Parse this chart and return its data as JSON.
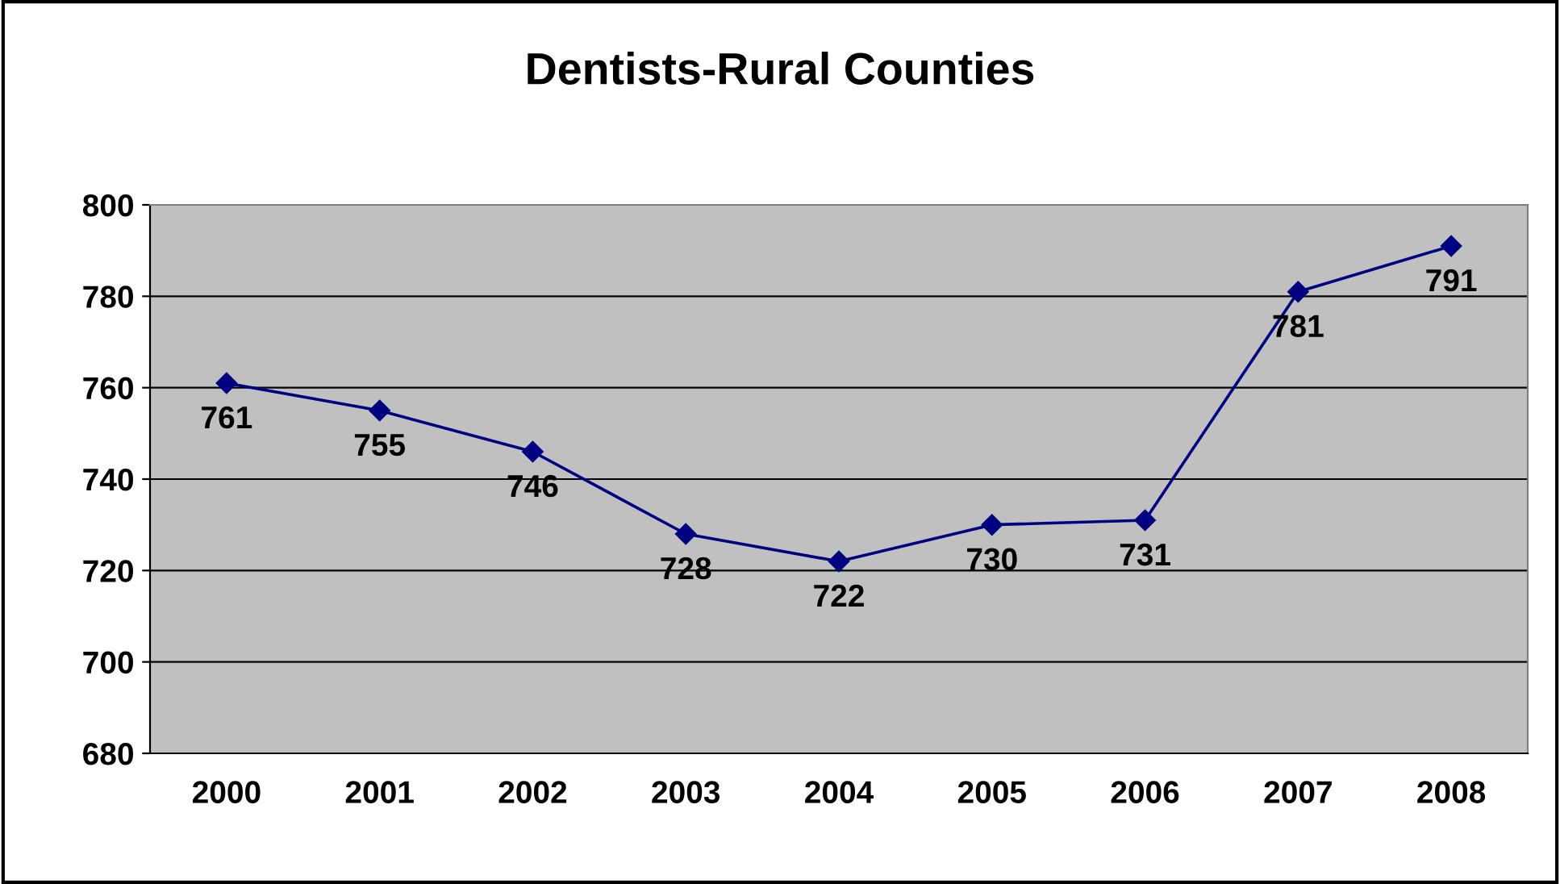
{
  "chart_data": {
    "type": "line",
    "title": "Dentists-Rural Counties",
    "categories": [
      "2000",
      "2001",
      "2002",
      "2003",
      "2004",
      "2005",
      "2006",
      "2007",
      "2008"
    ],
    "series": [
      {
        "color": "#000080",
        "values": [
          761,
          755,
          746,
          728,
          722,
          730,
          731,
          781,
          791
        ]
      }
    ],
    "ylim": [
      680,
      800
    ],
    "yticks": [
      680,
      700,
      720,
      740,
      760,
      780,
      800
    ],
    "grid": "y",
    "marker": "diamond",
    "line_style": "solid",
    "data_labels": true,
    "legend": false
  }
}
